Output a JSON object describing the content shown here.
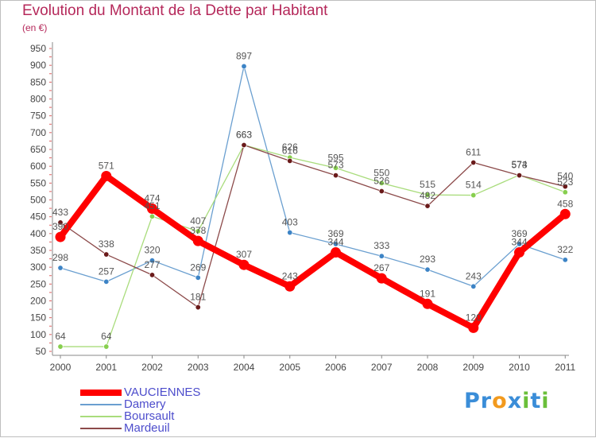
{
  "title": "Evolution du Montant de la Dette par Habitant",
  "subtitle": "(en €)",
  "logo": {
    "text": [
      "P",
      "r",
      "o",
      "x",
      "i",
      "t",
      "i"
    ],
    "colors": [
      "#3a8dd8",
      "#3a8dd8",
      "#f29a1e",
      "#3a8dd8",
      "#6abf3a",
      "#3a8dd8",
      "#6abf3a"
    ]
  },
  "chart_data": {
    "type": "line",
    "title": "Evolution du Montant de la Dette par Habitant",
    "ylabel": "(en €)",
    "xlabel": "",
    "categories": [
      "2000",
      "2001",
      "2002",
      "2003",
      "2004",
      "2005",
      "2006",
      "2007",
      "2008",
      "2009",
      "2010",
      "2011"
    ],
    "ylim": [
      50,
      950
    ],
    "yticks": [
      50,
      100,
      150,
      200,
      250,
      300,
      350,
      400,
      450,
      500,
      550,
      600,
      650,
      700,
      750,
      800,
      850,
      900,
      950
    ],
    "grid": false,
    "legend_position": "bottom-left",
    "series": [
      {
        "name": "Damery",
        "color": "#6a9fd0",
        "marker": "#3d84c6",
        "values": [
          298,
          257,
          320,
          269,
          897,
          403,
          369,
          333,
          293,
          243,
          369,
          322
        ]
      },
      {
        "name": "Boursault",
        "color": "#a9dc7c",
        "marker": "#87cf4e",
        "values": [
          64,
          64,
          451,
          407,
          663,
          626,
          595,
          550,
          515,
          514,
          574,
          523
        ]
      },
      {
        "name": "Mardeuil",
        "color": "#8c4a4a",
        "marker": "#6a1a1a",
        "values": [
          433,
          338,
          277,
          181,
          663,
          616,
          573,
          526,
          482,
          611,
          573,
          540
        ]
      },
      {
        "name": "VAUCIENNES",
        "color": "#ff0000",
        "marker": "#ff0000",
        "values": [
          390,
          571,
          474,
          378,
          307,
          243,
          344,
          267,
          191,
          120,
          344,
          458
        ]
      }
    ],
    "value_labels": [
      {
        "series": "Damery",
        "values": [
          "298",
          "257",
          "320",
          "269",
          "897",
          "403",
          "369",
          "333",
          "293",
          "243",
          "369",
          "322"
        ]
      },
      {
        "series": "Boursault",
        "values": [
          "64",
          "64",
          "451",
          "407",
          "663",
          "626",
          "595",
          "550",
          "515",
          "514",
          "574",
          "523"
        ]
      },
      {
        "series": "Mardeuil",
        "values": [
          "433",
          "338",
          "277",
          "181",
          "663",
          "616",
          "573",
          "526",
          "482",
          "611",
          "573",
          "540"
        ]
      },
      {
        "series": "VAUCIENNES",
        "values": [
          "390",
          "571",
          "474",
          "378",
          "307",
          "243",
          "344",
          "267",
          "191",
          "120",
          "344",
          "458"
        ]
      }
    ],
    "legend": [
      "VAUCIENNES",
      "Damery",
      "Boursault",
      "Mardeuil"
    ]
  }
}
